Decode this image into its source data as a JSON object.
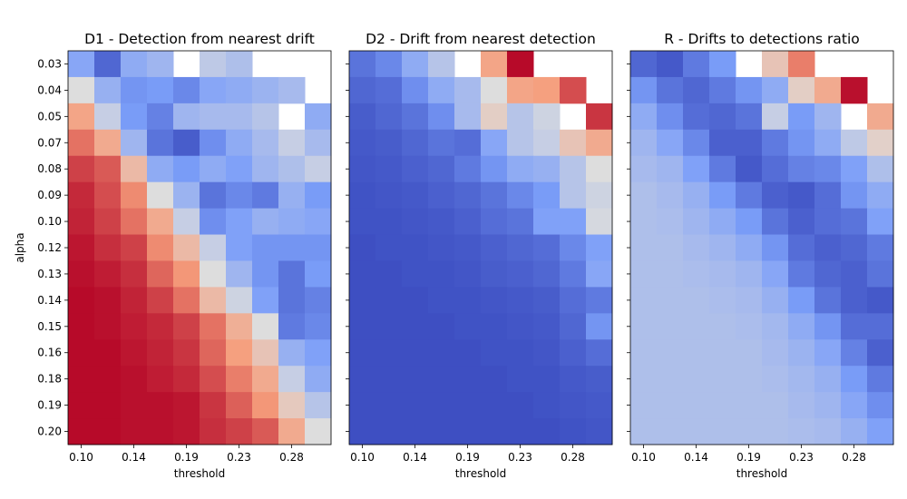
{
  "chart_data": [
    {
      "type": "heatmap",
      "title": "D1 - Detection from nearest drift",
      "xlabel": "threshold",
      "ylabel": "alpha",
      "colormap": "coolwarm",
      "x_tick_labels": [
        "0.10",
        "0.14",
        "0.19",
        "0.23",
        "0.28"
      ],
      "x_tick_columns": [
        0,
        2,
        4,
        6,
        8
      ],
      "y_tick_labels": [
        "0.03",
        "0.04",
        "0.05",
        "0.07",
        "0.08",
        "0.09",
        "0.10",
        "0.12",
        "0.13",
        "0.14",
        "0.15",
        "0.16",
        "0.18",
        "0.19",
        "0.20"
      ],
      "columns": 10,
      "values": [
        [
          0.28,
          0.08,
          0.3,
          0.34,
          null,
          0.42,
          0.38,
          null,
          null,
          null
        ],
        [
          0.5,
          0.32,
          0.22,
          0.24,
          0.18,
          0.28,
          0.3,
          0.33,
          0.36,
          null
        ],
        [
          0.72,
          0.44,
          0.24,
          0.16,
          0.34,
          0.36,
          0.36,
          0.4,
          null,
          0.3
        ],
        [
          0.82,
          0.7,
          0.34,
          0.12,
          0.05,
          0.2,
          0.3,
          0.36,
          0.44,
          0.36
        ],
        [
          0.9,
          0.86,
          0.64,
          0.3,
          0.24,
          0.3,
          0.26,
          0.34,
          0.38,
          0.44
        ],
        [
          0.94,
          0.88,
          0.78,
          0.5,
          0.33,
          0.12,
          0.18,
          0.14,
          0.32,
          0.24
        ],
        [
          0.95,
          0.9,
          0.82,
          0.7,
          0.44,
          0.2,
          0.26,
          0.32,
          0.3,
          0.28
        ],
        [
          0.97,
          0.93,
          0.9,
          0.78,
          0.64,
          0.44,
          0.26,
          0.22,
          0.22,
          0.22
        ],
        [
          0.98,
          0.96,
          0.93,
          0.84,
          0.76,
          0.5,
          0.34,
          0.22,
          0.12,
          0.24
        ],
        [
          0.99,
          0.98,
          0.95,
          0.9,
          0.82,
          0.64,
          0.46,
          0.26,
          0.12,
          0.16
        ],
        [
          0.99,
          0.98,
          0.96,
          0.94,
          0.9,
          0.82,
          0.68,
          0.5,
          0.14,
          0.18
        ],
        [
          0.99,
          0.99,
          0.97,
          0.95,
          0.92,
          0.84,
          0.74,
          0.6,
          0.32,
          0.26
        ],
        [
          0.99,
          0.99,
          0.98,
          0.96,
          0.94,
          0.88,
          0.8,
          0.7,
          0.44,
          0.3
        ],
        [
          0.99,
          0.99,
          0.98,
          0.98,
          0.97,
          0.92,
          0.85,
          0.76,
          0.58,
          0.4
        ],
        [
          0.99,
          0.99,
          0.98,
          0.98,
          0.97,
          0.93,
          0.9,
          0.86,
          0.7,
          0.5
        ]
      ]
    },
    {
      "type": "heatmap",
      "title": "D2 - Drift from nearest detection",
      "xlabel": "threshold",
      "ylabel": "",
      "colormap": "coolwarm",
      "x_tick_labels": [
        "0.10",
        "0.14",
        "0.19",
        "0.23",
        "0.28"
      ],
      "x_tick_columns": [
        0,
        2,
        4,
        6,
        8
      ],
      "y_tick_labels": [],
      "columns": 10,
      "values": [
        [
          0.12,
          0.18,
          0.3,
          0.4,
          null,
          0.72,
          0.99,
          null,
          null,
          null
        ],
        [
          0.08,
          0.1,
          0.2,
          0.3,
          0.36,
          0.5,
          0.72,
          0.74,
          0.88,
          null
        ],
        [
          0.05,
          0.08,
          0.12,
          0.2,
          0.36,
          0.56,
          0.4,
          0.46,
          null,
          0.92
        ],
        [
          0.04,
          0.05,
          0.08,
          0.12,
          0.1,
          0.28,
          0.4,
          0.44,
          0.6,
          0.7
        ],
        [
          0.03,
          0.04,
          0.06,
          0.08,
          0.14,
          0.22,
          0.3,
          0.32,
          0.4,
          0.5
        ],
        [
          0.02,
          0.03,
          0.04,
          0.06,
          0.08,
          0.12,
          0.18,
          0.24,
          0.4,
          0.46
        ],
        [
          0.02,
          0.02,
          0.03,
          0.04,
          0.06,
          0.1,
          0.12,
          0.26,
          0.26,
          0.48
        ],
        [
          0.01,
          0.02,
          0.02,
          0.03,
          0.04,
          0.06,
          0.08,
          0.1,
          0.18,
          0.26
        ],
        [
          0.01,
          0.01,
          0.02,
          0.02,
          0.03,
          0.05,
          0.06,
          0.08,
          0.14,
          0.28
        ],
        [
          0.01,
          0.01,
          0.01,
          0.02,
          0.02,
          0.03,
          0.04,
          0.05,
          0.1,
          0.14
        ],
        [
          0.01,
          0.01,
          0.01,
          0.01,
          0.02,
          0.02,
          0.03,
          0.04,
          0.08,
          0.22
        ],
        [
          0.01,
          0.01,
          0.01,
          0.01,
          0.01,
          0.02,
          0.02,
          0.03,
          0.06,
          0.1
        ],
        [
          0.01,
          0.01,
          0.01,
          0.01,
          0.01,
          0.01,
          0.02,
          0.02,
          0.04,
          0.05
        ],
        [
          0.01,
          0.01,
          0.01,
          0.01,
          0.01,
          0.01,
          0.01,
          0.02,
          0.03,
          0.04
        ],
        [
          0.01,
          0.01,
          0.01,
          0.01,
          0.01,
          0.01,
          0.01,
          0.01,
          0.02,
          0.03
        ]
      ]
    },
    {
      "type": "heatmap",
      "title": "R - Drifts to detections ratio",
      "xlabel": "threshold",
      "ylabel": "",
      "colormap": "coolwarm",
      "x_tick_labels": [
        "0.10",
        "0.14",
        "0.19",
        "0.23",
        "0.28"
      ],
      "x_tick_columns": [
        0,
        2,
        4,
        6,
        8
      ],
      "y_tick_labels": [],
      "columns": 10,
      "values": [
        [
          0.08,
          0.04,
          0.14,
          0.24,
          null,
          0.6,
          0.8,
          null,
          null,
          null
        ],
        [
          0.22,
          0.12,
          0.08,
          0.14,
          0.22,
          0.3,
          0.56,
          0.7,
          0.98,
          null
        ],
        [
          0.3,
          0.2,
          0.1,
          0.08,
          0.12,
          0.44,
          0.24,
          0.34,
          null,
          0.7
        ],
        [
          0.34,
          0.28,
          0.18,
          0.06,
          0.06,
          0.14,
          0.22,
          0.3,
          0.42,
          0.55
        ],
        [
          0.36,
          0.34,
          0.26,
          0.14,
          0.04,
          0.1,
          0.16,
          0.18,
          0.26,
          0.38
        ],
        [
          0.38,
          0.36,
          0.32,
          0.24,
          0.14,
          0.06,
          0.04,
          0.1,
          0.22,
          0.3
        ],
        [
          0.38,
          0.37,
          0.34,
          0.3,
          0.24,
          0.12,
          0.06,
          0.1,
          0.12,
          0.26
        ],
        [
          0.38,
          0.38,
          0.36,
          0.34,
          0.3,
          0.22,
          0.1,
          0.06,
          0.08,
          0.14
        ],
        [
          0.38,
          0.38,
          0.37,
          0.36,
          0.34,
          0.28,
          0.14,
          0.08,
          0.06,
          0.12
        ],
        [
          0.38,
          0.38,
          0.38,
          0.37,
          0.36,
          0.32,
          0.24,
          0.12,
          0.06,
          0.04
        ],
        [
          0.38,
          0.38,
          0.38,
          0.38,
          0.37,
          0.35,
          0.3,
          0.22,
          0.1,
          0.1
        ],
        [
          0.38,
          0.38,
          0.38,
          0.38,
          0.38,
          0.36,
          0.33,
          0.28,
          0.16,
          0.06
        ],
        [
          0.38,
          0.38,
          0.38,
          0.38,
          0.38,
          0.37,
          0.35,
          0.32,
          0.24,
          0.14
        ],
        [
          0.38,
          0.38,
          0.38,
          0.38,
          0.38,
          0.38,
          0.36,
          0.34,
          0.28,
          0.2
        ],
        [
          0.38,
          0.38,
          0.38,
          0.38,
          0.38,
          0.38,
          0.37,
          0.36,
          0.32,
          0.26
        ]
      ]
    }
  ]
}
